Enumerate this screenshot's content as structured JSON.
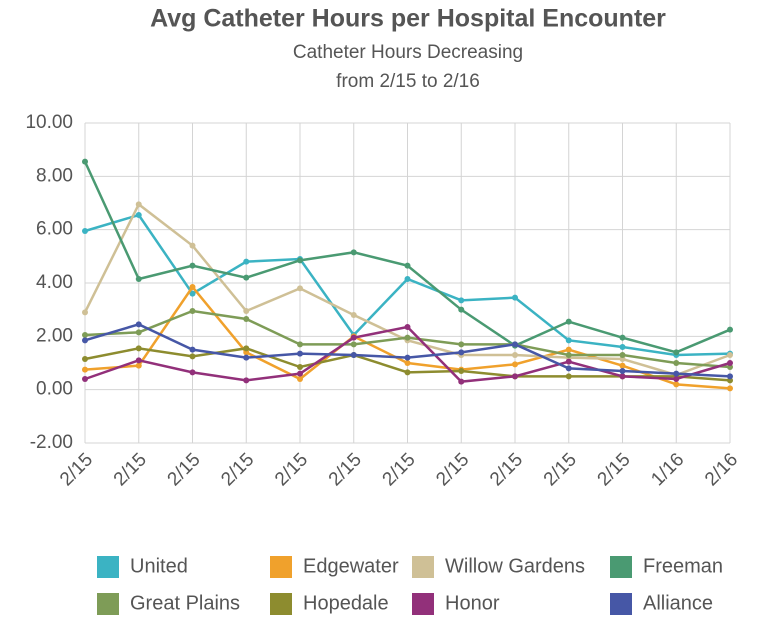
{
  "chart_data": {
    "type": "line",
    "title": "Avg Catheter Hours per Hospital Encounter",
    "subtitle": [
      "Catheter Hours Decreasing",
      "from 2/15 to 2/16"
    ],
    "categories": [
      "2/15",
      "2/15",
      "2/15",
      "2/15",
      "2/15",
      "2/15",
      "2/15",
      "2/15",
      "2/15",
      "2/15",
      "2/15",
      "1/16",
      "2/16"
    ],
    "ylim": [
      -2,
      10
    ],
    "yticks": [
      {
        "value": 10,
        "label": "10.00"
      },
      {
        "value": 8,
        "label": "8.00"
      },
      {
        "value": 6,
        "label": "6.00"
      },
      {
        "value": 4,
        "label": "4.00"
      },
      {
        "value": 2,
        "label": "2.00"
      },
      {
        "value": 0,
        "label": "0.00"
      },
      {
        "value": -2,
        "label": "-2.00"
      }
    ],
    "grid": true,
    "series": [
      {
        "name": "United",
        "color": "#3bb3c3",
        "values": [
          5.95,
          6.55,
          3.6,
          4.8,
          4.9,
          2.05,
          4.15,
          3.35,
          3.45,
          1.85,
          1.6,
          1.3,
          1.35
        ]
      },
      {
        "name": "Edgewater",
        "color": "#f0a12c",
        "values": [
          0.75,
          0.9,
          3.85,
          1.4,
          0.4,
          2.0,
          1.0,
          0.75,
          0.95,
          1.5,
          0.9,
          0.2,
          0.05
        ]
      },
      {
        "name": "Willow Gardens",
        "color": "#cfc096",
        "values": [
          2.9,
          6.95,
          5.4,
          2.95,
          3.8,
          2.8,
          1.85,
          1.3,
          1.3,
          1.2,
          1.15,
          0.55,
          1.3
        ]
      },
      {
        "name": "Freeman",
        "color": "#4a9a72",
        "values": [
          8.55,
          4.15,
          4.65,
          4.2,
          4.85,
          5.15,
          4.65,
          3.0,
          1.65,
          2.55,
          1.95,
          1.4,
          2.25
        ]
      },
      {
        "name": "Great Plains",
        "color": "#7e9c57",
        "values": [
          2.05,
          2.15,
          2.95,
          2.65,
          1.7,
          1.7,
          1.95,
          1.7,
          1.7,
          1.3,
          1.3,
          1.0,
          0.85
        ]
      },
      {
        "name": "Hopedale",
        "color": "#8d8c2f",
        "values": [
          1.15,
          1.55,
          1.25,
          1.55,
          0.85,
          1.3,
          0.65,
          0.7,
          0.5,
          0.5,
          0.5,
          0.5,
          0.35
        ]
      },
      {
        "name": "Honor",
        "color": "#92307a",
        "values": [
          0.4,
          1.1,
          0.65,
          0.35,
          0.6,
          1.95,
          2.35,
          0.3,
          0.5,
          1.05,
          0.5,
          0.4,
          1.0
        ]
      },
      {
        "name": "Alliance",
        "color": "#4657a6",
        "values": [
          1.85,
          2.45,
          1.5,
          1.2,
          1.35,
          1.3,
          1.2,
          1.4,
          1.7,
          0.8,
          0.7,
          0.6,
          0.5
        ]
      }
    ]
  }
}
